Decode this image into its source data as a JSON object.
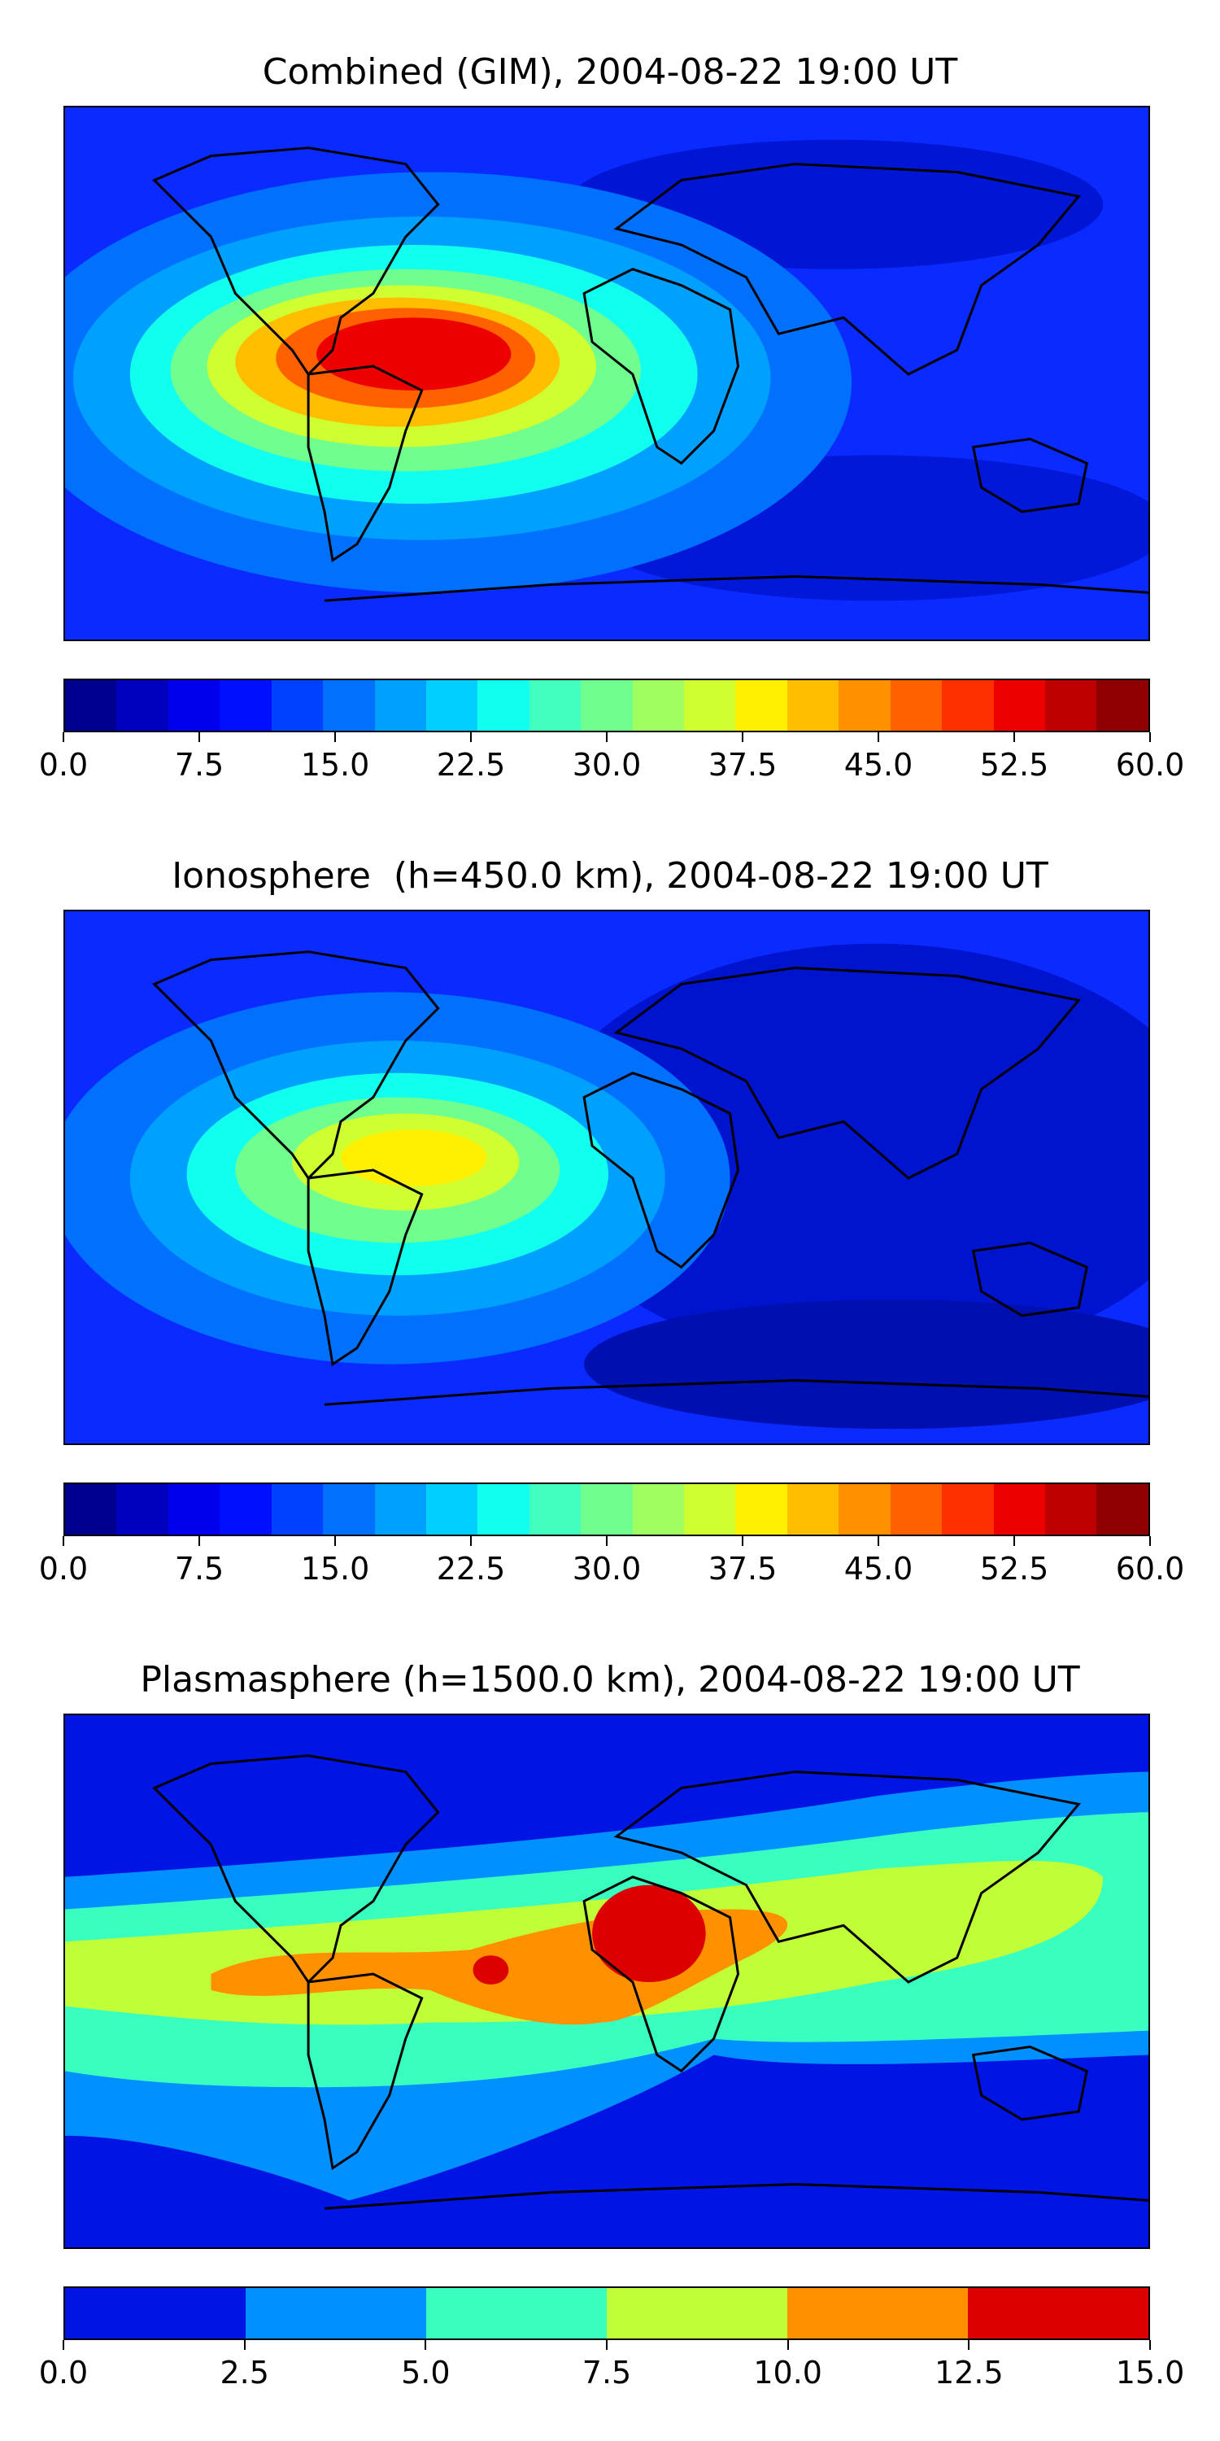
{
  "panels": [
    {
      "title": "Combined (GIM), 2004-08-22 19:00 UT",
      "colorbar_ticks": [
        "0.0",
        "7.5",
        "15.0",
        "22.5",
        "30.0",
        "37.5",
        "45.0",
        "52.5",
        "60.0"
      ],
      "colorbar_colors": [
        "#00008f",
        "#0000bf",
        "#0000ef",
        "#0010ff",
        "#0040ff",
        "#0070ff",
        "#00a0ff",
        "#00cfff",
        "#10ffef",
        "#40ffbf",
        "#70ff8f",
        "#a0ff60",
        "#cfff30",
        "#ffef00",
        "#ffbf00",
        "#ff9000",
        "#ff6000",
        "#ff3000",
        "#ef0000",
        "#bf0000",
        "#8f0000"
      ]
    },
    {
      "title": "Ionosphere  (h=450.0 km), 2004-08-22 19:00 UT",
      "colorbar_ticks": [
        "0.0",
        "7.5",
        "15.0",
        "22.5",
        "30.0",
        "37.5",
        "45.0",
        "52.5",
        "60.0"
      ],
      "colorbar_colors": [
        "#00008f",
        "#0000bf",
        "#0000ef",
        "#0010ff",
        "#0040ff",
        "#0070ff",
        "#00a0ff",
        "#00cfff",
        "#10ffef",
        "#40ffbf",
        "#70ff8f",
        "#a0ff60",
        "#cfff30",
        "#ffef00",
        "#ffbf00",
        "#ff9000",
        "#ff6000",
        "#ff3000",
        "#ef0000",
        "#bf0000",
        "#8f0000"
      ]
    },
    {
      "title": "Plasmasphere (h=1500.0 km), 2004-08-22 19:00 UT",
      "colorbar_ticks": [
        "0.0",
        "2.5",
        "5.0",
        "7.5",
        "10.0",
        "12.5",
        "15.0"
      ],
      "colorbar_colors": [
        "#0014e6",
        "#0090ff",
        "#38ffc0",
        "#c0ff38",
        "#ff9000",
        "#dc0000"
      ]
    }
  ]
}
